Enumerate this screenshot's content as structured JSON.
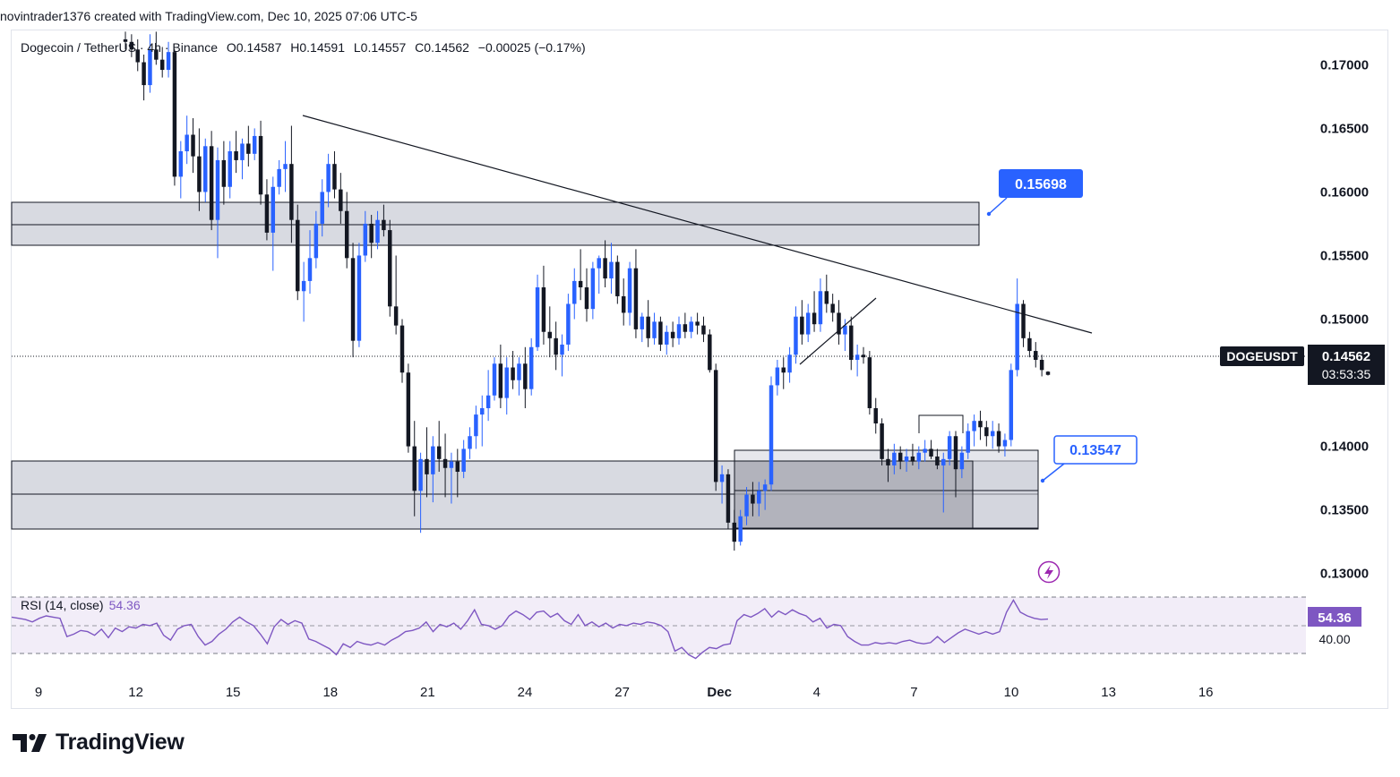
{
  "header": {
    "caption": "novintrader1376 created with TradingView.com, Dec 10, 2025 07:06 UTC-5"
  },
  "legend": {
    "symbol": "Dogecoin / TetherUS · 4h · Binance",
    "open": "O0.14587",
    "high": "H0.14591",
    "low": "L0.14557",
    "close": "C0.14562",
    "change": "−0.00025 (−0.17%)"
  },
  "price_axis": {
    "ticks": [
      "0.17000",
      "0.16500",
      "0.16000",
      "0.15500",
      "0.15000",
      "0.14000",
      "0.13500",
      "0.13000"
    ],
    "ticker_label": "DOGEUSDT",
    "last_price": "0.14562",
    "countdown": "03:53:35"
  },
  "time_axis": {
    "labels": [
      "9",
      "12",
      "15",
      "18",
      "21",
      "24",
      "27",
      "Dec",
      "4",
      "7",
      "10",
      "13",
      "16"
    ]
  },
  "annotations": {
    "upper_callout": "0.15698",
    "lower_callout": "0.13547"
  },
  "rsi": {
    "label": "RSI (14, close)",
    "value": "54.36",
    "axis_value": "54.36",
    "axis_level": "40.00"
  },
  "brand": {
    "name": "TradingView"
  },
  "colors": {
    "up": "#2962ff",
    "down": "#131722",
    "rsi_line": "#7e57c2",
    "rsi_band": "#ede7f6",
    "zone": "#d1d4dc",
    "zone_dark": "#b2b5be",
    "callout_fill": "#2962ff",
    "alert_icon": "#9c27b0"
  },
  "chart_data": {
    "type": "candlestick",
    "symbol": "DOGEUSDT",
    "interval": "4h",
    "exchange": "Binance",
    "ylim": [
      0.1285,
      0.1727
    ],
    "x_labels": [
      "9",
      "12",
      "15",
      "18",
      "21",
      "24",
      "27",
      "Dec",
      "4",
      "7",
      "10",
      "13",
      "16"
    ],
    "y_ticks": [
      0.13,
      0.135,
      0.14,
      0.15,
      0.155,
      0.16,
      0.165,
      0.17
    ],
    "last": {
      "open": 0.14587,
      "high": 0.14591,
      "low": 0.14557,
      "close": 0.14562
    },
    "callouts": [
      0.15698,
      0.13547
    ],
    "candles": [
      [
        0.172,
        0.1726,
        0.1712,
        0.1718
      ],
      [
        0.1718,
        0.1724,
        0.1706,
        0.1712
      ],
      [
        0.1712,
        0.172,
        0.1695,
        0.1702
      ],
      [
        0.1702,
        0.1708,
        0.1672,
        0.1684
      ],
      [
        0.1684,
        0.1724,
        0.1678,
        0.1712
      ],
      [
        0.1712,
        0.1726,
        0.17,
        0.1704
      ],
      [
        0.1704,
        0.1714,
        0.169,
        0.1696
      ],
      [
        0.1696,
        0.1718,
        0.169,
        0.171
      ],
      [
        0.171,
        0.1712,
        0.1605,
        0.1612
      ],
      [
        0.1612,
        0.164,
        0.1595,
        0.1632
      ],
      [
        0.1632,
        0.166,
        0.1622,
        0.1645
      ],
      [
        0.1645,
        0.1658,
        0.1615,
        0.1628
      ],
      [
        0.1628,
        0.165,
        0.1585,
        0.16
      ],
      [
        0.16,
        0.1642,
        0.1592,
        0.1636
      ],
      [
        0.1636,
        0.1648,
        0.157,
        0.1578
      ],
      [
        0.1578,
        0.1635,
        0.1548,
        0.1625
      ],
      [
        0.1625,
        0.164,
        0.159,
        0.1604
      ],
      [
        0.1604,
        0.164,
        0.1595,
        0.1632
      ],
      [
        0.1632,
        0.1648,
        0.1615,
        0.1625
      ],
      [
        0.1625,
        0.1642,
        0.161,
        0.1638
      ],
      [
        0.1638,
        0.1652,
        0.162,
        0.163
      ],
      [
        0.163,
        0.165,
        0.1625,
        0.1644
      ],
      [
        0.1644,
        0.1656,
        0.159,
        0.1598
      ],
      [
        0.1598,
        0.161,
        0.1562,
        0.1568
      ],
      [
        0.1568,
        0.1612,
        0.1538,
        0.1604
      ],
      [
        0.1604,
        0.1625,
        0.1598,
        0.1618
      ],
      [
        0.1618,
        0.164,
        0.16,
        0.1622
      ],
      [
        0.1622,
        0.1652,
        0.156,
        0.1578
      ],
      [
        0.1578,
        0.159,
        0.1515,
        0.1522
      ],
      [
        0.1522,
        0.1545,
        0.1498,
        0.153
      ],
      [
        0.153,
        0.157,
        0.152,
        0.1548
      ],
      [
        0.1548,
        0.1585,
        0.154,
        0.1575
      ],
      [
        0.1575,
        0.161,
        0.1565,
        0.16
      ],
      [
        0.16,
        0.163,
        0.1588,
        0.1622
      ],
      [
        0.1622,
        0.1632,
        0.1595,
        0.1602
      ],
      [
        0.1602,
        0.1615,
        0.1575,
        0.1585
      ],
      [
        0.1585,
        0.16,
        0.154,
        0.1548
      ],
      [
        0.1548,
        0.156,
        0.147,
        0.1483
      ],
      [
        0.1483,
        0.156,
        0.1478,
        0.155
      ],
      [
        0.155,
        0.1585,
        0.1545,
        0.1575
      ],
      [
        0.1575,
        0.1582,
        0.1548,
        0.156
      ],
      [
        0.156,
        0.1585,
        0.1555,
        0.1578
      ],
      [
        0.1578,
        0.159,
        0.1565,
        0.157
      ],
      [
        0.157,
        0.1578,
        0.1502,
        0.151
      ],
      [
        0.151,
        0.155,
        0.1488,
        0.1495
      ],
      [
        0.1495,
        0.15,
        0.145,
        0.1458
      ],
      [
        0.1458,
        0.1465,
        0.1395,
        0.14
      ],
      [
        0.14,
        0.142,
        0.1345,
        0.1365
      ],
      [
        0.1365,
        0.1395,
        0.1332,
        0.139
      ],
      [
        0.139,
        0.1415,
        0.136,
        0.1378
      ],
      [
        0.1378,
        0.1408,
        0.1356,
        0.14
      ],
      [
        0.14,
        0.142,
        0.138,
        0.139
      ],
      [
        0.139,
        0.141,
        0.136,
        0.1383
      ],
      [
        0.1383,
        0.1395,
        0.1355,
        0.1388
      ],
      [
        0.1388,
        0.1398,
        0.136,
        0.138
      ],
      [
        0.138,
        0.1405,
        0.1375,
        0.1398
      ],
      [
        0.1398,
        0.1415,
        0.139,
        0.1408
      ],
      [
        0.1408,
        0.1432,
        0.1398,
        0.1425
      ],
      [
        0.1425,
        0.144,
        0.14,
        0.143
      ],
      [
        0.143,
        0.146,
        0.142,
        0.144
      ],
      [
        0.144,
        0.147,
        0.1436,
        0.1465
      ],
      [
        0.1465,
        0.148,
        0.143,
        0.1438
      ],
      [
        0.1438,
        0.147,
        0.1425,
        0.1462
      ],
      [
        0.1462,
        0.1475,
        0.1445,
        0.1452
      ],
      [
        0.1452,
        0.147,
        0.144,
        0.1465
      ],
      [
        0.1465,
        0.1478,
        0.143,
        0.1445
      ],
      [
        0.1445,
        0.1485,
        0.144,
        0.1478
      ],
      [
        0.1478,
        0.1535,
        0.1475,
        0.1525
      ],
      [
        0.1525,
        0.1542,
        0.148,
        0.149
      ],
      [
        0.149,
        0.151,
        0.147,
        0.1485
      ],
      [
        0.1485,
        0.1498,
        0.146,
        0.1472
      ],
      [
        0.1472,
        0.1488,
        0.1455,
        0.148
      ],
      [
        0.148,
        0.152,
        0.1475,
        0.1512
      ],
      [
        0.1512,
        0.154,
        0.15,
        0.153
      ],
      [
        0.153,
        0.1555,
        0.1515,
        0.1525
      ],
      [
        0.1525,
        0.154,
        0.1498,
        0.1508
      ],
      [
        0.1508,
        0.1545,
        0.15,
        0.154
      ],
      [
        0.154,
        0.155,
        0.152,
        0.1548
      ],
      [
        0.1548,
        0.1562,
        0.1525,
        0.1532
      ],
      [
        0.1532,
        0.156,
        0.152,
        0.1545
      ],
      [
        0.1545,
        0.155,
        0.1512,
        0.1518
      ],
      [
        0.1518,
        0.1532,
        0.1495,
        0.1505
      ],
      [
        0.1505,
        0.1545,
        0.1495,
        0.154
      ],
      [
        0.154,
        0.1555,
        0.1485,
        0.1492
      ],
      [
        0.1492,
        0.1505,
        0.1482,
        0.1502
      ],
      [
        0.1502,
        0.1515,
        0.1478,
        0.1485
      ],
      [
        0.1485,
        0.1505,
        0.148,
        0.1498
      ],
      [
        0.1498,
        0.1502,
        0.1475,
        0.148
      ],
      [
        0.148,
        0.1495,
        0.1472,
        0.149
      ],
      [
        0.149,
        0.1498,
        0.1478,
        0.1485
      ],
      [
        0.1485,
        0.1502,
        0.148,
        0.1496
      ],
      [
        0.1496,
        0.1505,
        0.1485,
        0.149
      ],
      [
        0.149,
        0.1502,
        0.1485,
        0.1498
      ],
      [
        0.1498,
        0.1505,
        0.1488,
        0.1495
      ],
      [
        0.1495,
        0.1502,
        0.1482,
        0.1488
      ],
      [
        0.1488,
        0.1492,
        0.1458,
        0.146
      ],
      [
        0.146,
        0.1465,
        0.1365,
        0.1372
      ],
      [
        0.1372,
        0.1385,
        0.1355,
        0.1378
      ],
      [
        0.1378,
        0.1382,
        0.1335,
        0.134
      ],
      [
        0.134,
        0.135,
        0.1318,
        0.1325
      ],
      [
        0.1325,
        0.135,
        0.1322,
        0.1345
      ],
      [
        0.1345,
        0.1368,
        0.1338,
        0.1362
      ],
      [
        0.1362,
        0.1372,
        0.1345,
        0.1355
      ],
      [
        0.1355,
        0.1372,
        0.1345,
        0.1365
      ],
      [
        0.1365,
        0.1374,
        0.135,
        0.137
      ],
      [
        0.137,
        0.1455,
        0.1365,
        0.1448
      ],
      [
        0.1448,
        0.1468,
        0.144,
        0.1462
      ],
      [
        0.1462,
        0.147,
        0.1445,
        0.1458
      ],
      [
        0.1458,
        0.1478,
        0.145,
        0.1472
      ],
      [
        0.1472,
        0.151,
        0.1465,
        0.1502
      ],
      [
        0.1502,
        0.1515,
        0.148,
        0.1488
      ],
      [
        0.1488,
        0.1512,
        0.1482,
        0.1505
      ],
      [
        0.1505,
        0.1522,
        0.149,
        0.1496
      ],
      [
        0.1496,
        0.1532,
        0.149,
        0.1522
      ],
      [
        0.1522,
        0.1535,
        0.1505,
        0.1512
      ],
      [
        0.1512,
        0.152,
        0.1498,
        0.1505
      ],
      [
        0.1505,
        0.1515,
        0.148,
        0.1488
      ],
      [
        0.1488,
        0.15,
        0.1475,
        0.1495
      ],
      [
        0.1495,
        0.1502,
        0.146,
        0.1468
      ],
      [
        0.1468,
        0.148,
        0.1455,
        0.1472
      ],
      [
        0.1472,
        0.1478,
        0.1465,
        0.147
      ],
      [
        0.147,
        0.1475,
        0.1425,
        0.143
      ],
      [
        0.143,
        0.1438,
        0.141,
        0.1418
      ],
      [
        0.1418,
        0.1422,
        0.1385,
        0.139
      ],
      [
        0.139,
        0.1398,
        0.1372,
        0.1385
      ],
      [
        0.1385,
        0.1402,
        0.1378,
        0.1395
      ],
      [
        0.1395,
        0.14,
        0.1382,
        0.1388
      ],
      [
        0.1388,
        0.1398,
        0.138,
        0.1392
      ],
      [
        0.1392,
        0.1402,
        0.1385,
        0.1388
      ],
      [
        0.1388,
        0.14,
        0.1382,
        0.1395
      ],
      [
        0.1395,
        0.1405,
        0.1388,
        0.1398
      ],
      [
        0.1398,
        0.1405,
        0.139,
        0.1392
      ],
      [
        0.1392,
        0.1398,
        0.1382,
        0.1385
      ],
      [
        0.1385,
        0.1395,
        0.1348,
        0.139
      ],
      [
        0.139,
        0.1412,
        0.1385,
        0.1408
      ],
      [
        0.1408,
        0.1412,
        0.136,
        0.1382
      ],
      [
        0.1382,
        0.14,
        0.1375,
        0.1395
      ],
      [
        0.1395,
        0.1418,
        0.139,
        0.1412
      ],
      [
        0.1412,
        0.1425,
        0.14,
        0.142
      ],
      [
        0.142,
        0.1428,
        0.1405,
        0.1415
      ],
      [
        0.1415,
        0.142,
        0.14,
        0.1408
      ],
      [
        0.1408,
        0.142,
        0.1398,
        0.1412
      ],
      [
        0.1412,
        0.1418,
        0.1395,
        0.14
      ],
      [
        0.14,
        0.141,
        0.1392,
        0.1405
      ],
      [
        0.1405,
        0.1465,
        0.14,
        0.146
      ],
      [
        0.146,
        0.1532,
        0.1455,
        0.1512
      ],
      [
        0.1512,
        0.1515,
        0.1478,
        0.1485
      ],
      [
        0.1485,
        0.149,
        0.147,
        0.1475
      ],
      [
        0.1475,
        0.1482,
        0.1462,
        0.1468
      ],
      [
        0.1468,
        0.1472,
        0.1455,
        0.146
      ],
      [
        0.14587,
        0.14591,
        0.14557,
        0.14562
      ]
    ],
    "rsi": {
      "period": 14,
      "source": "close",
      "value": 54.36,
      "ylim": [
        15,
        85
      ],
      "levels": [
        70,
        50,
        30
      ],
      "values": [
        56,
        55,
        54,
        52,
        55,
        57,
        56,
        55,
        40,
        42,
        45,
        44,
        41,
        46,
        39,
        47,
        44,
        48,
        47,
        50,
        49,
        51,
        41,
        37,
        46,
        49,
        50,
        40,
        33,
        36,
        42,
        46,
        52,
        56,
        52,
        49,
        42,
        34,
        48,
        54,
        50,
        53,
        51,
        38,
        36,
        33,
        30,
        25,
        34,
        31,
        36,
        34,
        33,
        35,
        33,
        37,
        40,
        44,
        45,
        47,
        52,
        44,
        50,
        48,
        51,
        46,
        53,
        62,
        50,
        49,
        46,
        49,
        57,
        61,
        58,
        54,
        60,
        61,
        56,
        59,
        53,
        50,
        58,
        49,
        52,
        48,
        51,
        47,
        50,
        49,
        51,
        50,
        52,
        51,
        49,
        44,
        28,
        31,
        25,
        22,
        27,
        31,
        30,
        33,
        34,
        53,
        58,
        56,
        59,
        63,
        56,
        61,
        58,
        62,
        59,
        57,
        52,
        55,
        47,
        50,
        49,
        40,
        36,
        33,
        33,
        35,
        34,
        35,
        34,
        36,
        37,
        35,
        34,
        35,
        40,
        35,
        39,
        43,
        46,
        44,
        42,
        44,
        42,
        44,
        60,
        70,
        60,
        57,
        55,
        54,
        54.36
      ]
    }
  }
}
